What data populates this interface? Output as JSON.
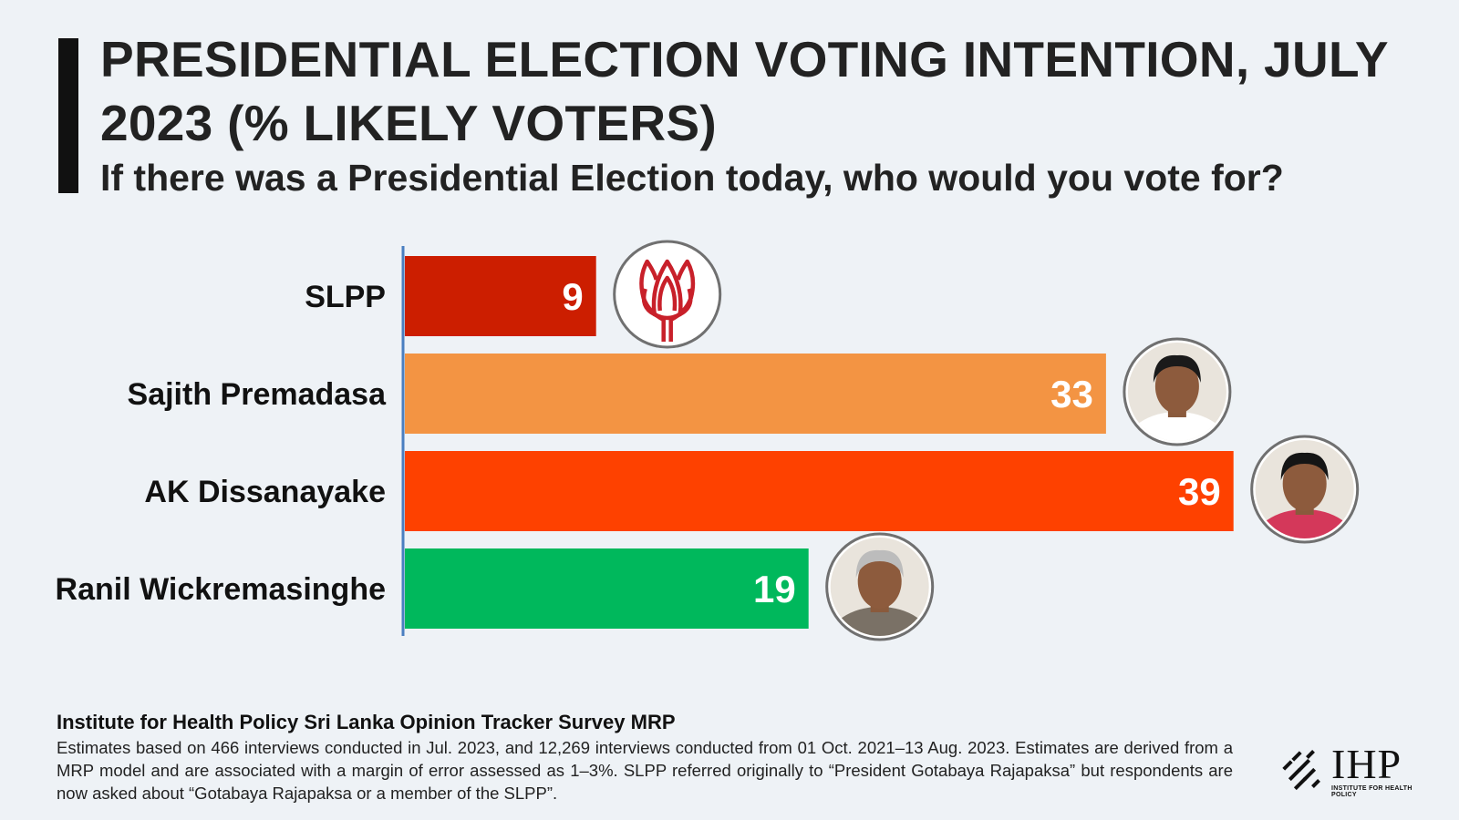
{
  "header": {
    "title": "PRESIDENTIAL ELECTION VOTING INTENTION, JULY 2023 (% LIKELY VOTERS)",
    "subtitle": "If there was a Presidential Election today, who would you vote for?"
  },
  "chart_data": {
    "type": "bar",
    "orientation": "horizontal",
    "categories": [
      "SLPP",
      "Sajith Premadasa",
      "AK Dissanayake",
      "Ranil Wickremasinghe"
    ],
    "values": [
      9,
      33,
      39,
      19
    ],
    "colors": [
      "#cc1e00",
      "#f39443",
      "#fe4100",
      "#00b85c"
    ],
    "icons": [
      "lotus-bud-symbol-icon",
      "sajith-premadasa-photo-icon",
      "ak-dissanayake-photo-icon",
      "ranil-wickremasinghe-photo-icon"
    ],
    "data_labels": true,
    "axis_color": "#4a7fc0",
    "xlim": [
      0,
      40
    ]
  },
  "footer": {
    "source": "Institute for Health Policy Sri Lanka Opinion Tracker Survey MRP",
    "note": "Estimates based on 466 interviews conducted in Jul. 2023, and 12,269 interviews conducted from 01 Oct. 2021–13 Aug. 2023. Estimates are derived from a MRP model and are associated with a margin of error assessed as 1–3%. SLPP referred originally to “President Gotabaya Rajapaksa” but respondents are now asked about “Gotabaya Rajapaksa or a member of the SLPP”."
  },
  "logo": {
    "text": "IHP",
    "subtext": "INSTITUTE FOR HEALTH POLICY"
  }
}
